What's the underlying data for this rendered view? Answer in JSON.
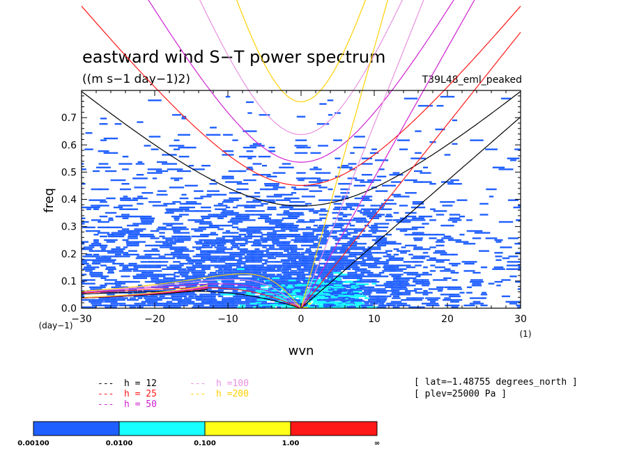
{
  "chart_data": {
    "type": "heatmap",
    "title": "eastward wind S−T power spectrum",
    "subtitle": "((m s−1 day−1)2)",
    "run_label": "T39L48_eml_peaked",
    "xlabel": "wvn",
    "ylabel": "freq",
    "x_unit": "(1)",
    "y_unit": "(day−1)",
    "xlim": [
      -30,
      30
    ],
    "ylim": [
      0,
      0.8
    ],
    "x_ticks": [
      -30,
      -20,
      -10,
      0,
      10,
      20,
      30
    ],
    "y_ticks": [
      0.0,
      0.1,
      0.2,
      0.3,
      0.4,
      0.5,
      0.6,
      0.7
    ],
    "x_tick_labels": [
      "−30",
      "−20",
      "−10",
      "0",
      "10",
      "20",
      "30"
    ],
    "y_tick_labels": [
      "0.0",
      "0.1",
      "0.2",
      "0.3",
      "0.4",
      "0.5",
      "0.6",
      "0.7"
    ],
    "color_levels": [
      "0.00100",
      "0.0100",
      "0.100",
      "1.00",
      "∞"
    ],
    "colors": [
      "#1f5fff",
      "#17ffff",
      "#ffff18",
      "#ff1818"
    ],
    "power_regions": [
      {
        "level": "0.00100-0.0100",
        "x": [
          -30,
          24
        ],
        "y": [
          0,
          0.55
        ]
      },
      {
        "level": "0.0100-0.100",
        "x": [
          -6,
          8
        ],
        "y": [
          0,
          0.12
        ]
      },
      {
        "level": "0.100-1.00",
        "x": [
          -1,
          2
        ],
        "y": [
          0,
          0.02
        ]
      }
    ],
    "dispersion_curves": [
      {
        "h": "12",
        "color": "#000000"
      },
      {
        "h": "25",
        "color": "#ff1818"
      },
      {
        "h": "50",
        "color": "#d020d0"
      },
      {
        "h": "100",
        "color": "#e890e0"
      },
      {
        "h": "200",
        "color": "#ffd000"
      }
    ],
    "legend_entries": [
      {
        "dash": "---",
        "text": "h = 12",
        "color": "#000000"
      },
      {
        "dash": "---",
        "text": "h = 25",
        "color": "#ff1818"
      },
      {
        "dash": "---",
        "text": "h = 50",
        "color": "#d020d0"
      },
      {
        "dash": "---",
        "text": "h =100",
        "color": "#e890e0"
      },
      {
        "dash": "---",
        "text": "h =200",
        "color": "#ffd000"
      }
    ],
    "annotations": [
      "[ lat=−1.48755 degrees_north ]",
      "[ plev=25000 Pa ]"
    ]
  }
}
